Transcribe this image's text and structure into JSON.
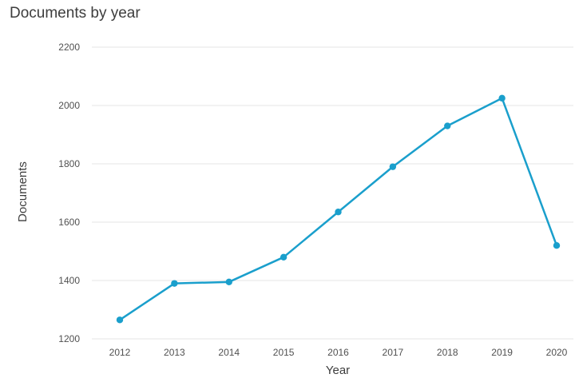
{
  "chart_data": {
    "type": "line",
    "title": "Documents by year",
    "xlabel": "Year",
    "ylabel": "Documents",
    "categories": [
      "2012",
      "2013",
      "2014",
      "2015",
      "2016",
      "2017",
      "2018",
      "2019",
      "2020"
    ],
    "series": [
      {
        "values": [
          1265,
          1390,
          1395,
          1480,
          1635,
          1790,
          1930,
          2025,
          1520
        ]
      }
    ],
    "ylim": [
      1200,
      2200
    ],
    "yticks": [
      1200,
      1400,
      1600,
      1800,
      2000,
      2200
    ],
    "grid": true,
    "line_color": "#1a9fcc",
    "grid_color": "#e4e4e4"
  }
}
